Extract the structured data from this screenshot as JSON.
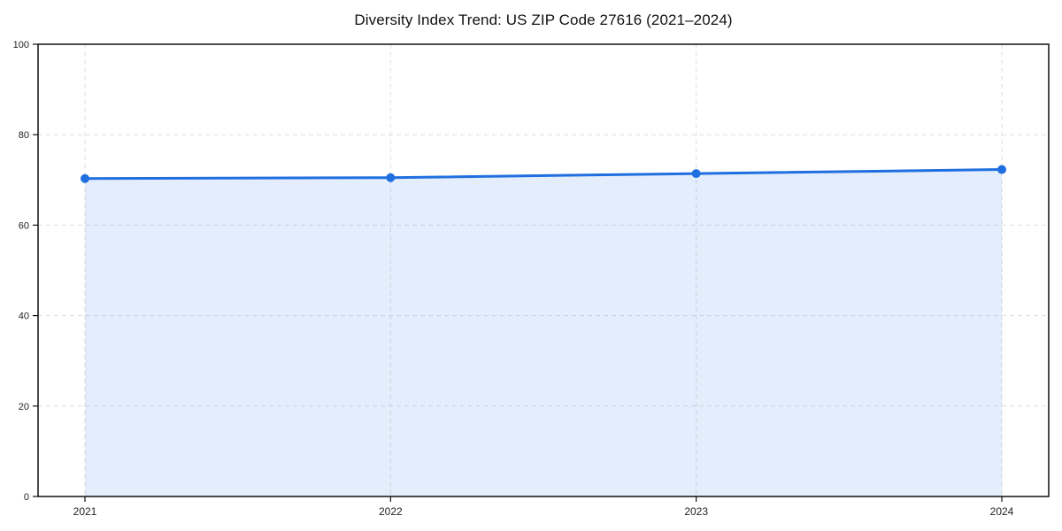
{
  "figure": {
    "background": "#ffffff"
  },
  "chart_data": {
    "type": "area",
    "title": "Diversity Index Trend: US ZIP Code 27616 (2021–2024)",
    "categories": [
      "2021",
      "2022",
      "2023",
      "2024"
    ],
    "series": [
      {
        "name": "Diversity Index",
        "values": [
          70.3,
          70.5,
          71.4,
          72.3
        ]
      }
    ],
    "xlabel": "",
    "ylabel": "",
    "ylim": [
      0,
      100
    ],
    "yticks": [
      0,
      20,
      40,
      60,
      80,
      100
    ],
    "grid": true,
    "grid_style": "dashed",
    "legend_position": "none",
    "colors": {
      "line": "#1f6fe0",
      "marker": "#1f6fe0",
      "fill": "#1f6fe0",
      "fill_opacity": 0.12,
      "grid": "#dedede",
      "spine": "#111111",
      "tick_label": "#222222",
      "title": "#111111"
    }
  }
}
